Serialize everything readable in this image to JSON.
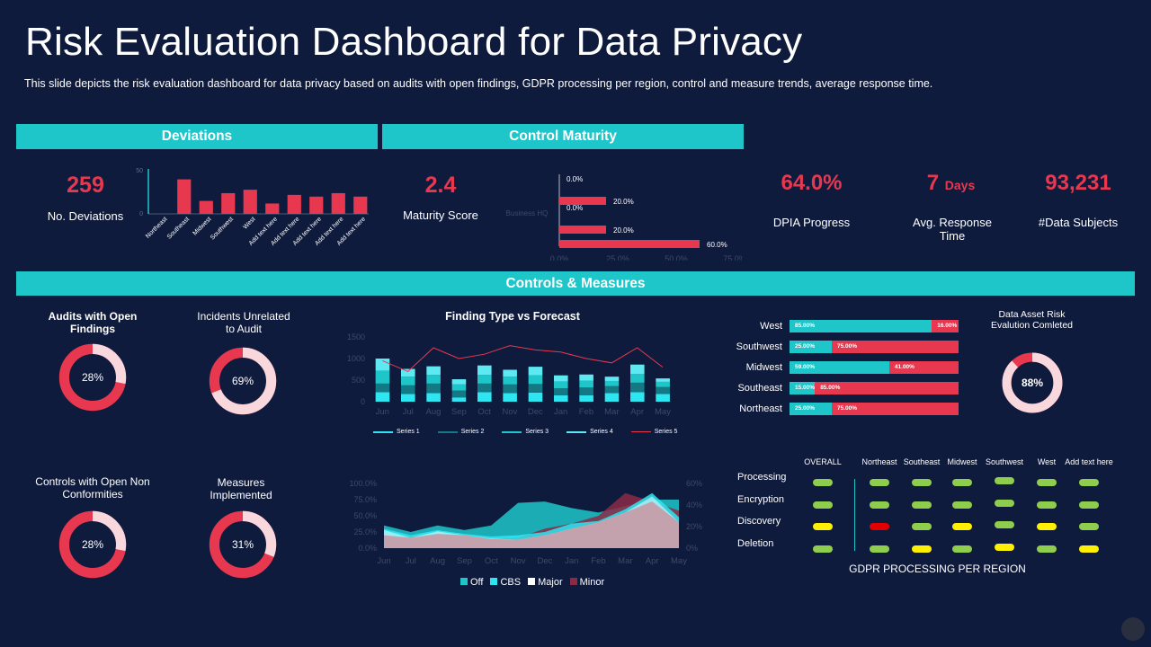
{
  "title": "Risk Evaluation Dashboard for Data Privacy",
  "subtitle": "This slide depicts the risk evaluation  dashboard for data privacy based on audits with open findings, GDPR processing per region, control and measure trends, average  response time.",
  "colors": {
    "background": "#0f1b3d",
    "accent": "#1ec6c9",
    "red": "#e8384f",
    "pink": "#f8d7dd",
    "green": "#8fce4c",
    "yellow": "#ffef00"
  },
  "sections": {
    "deviations": "Deviations",
    "control_maturity": "Control Maturity",
    "controls_measures": "Controls & Measures"
  },
  "kpis": {
    "deviations_value": "259",
    "deviations_label": "No. Deviations",
    "maturity_value": "2.4",
    "maturity_label": "Maturity Score",
    "dpia_value": "64.0%",
    "dpia_label": "DPIA Progress",
    "response_value": "7",
    "response_unit": "Days",
    "response_label": "Avg. Response Time",
    "subjects_value": "93,231",
    "subjects_label": "#Data Subjects"
  },
  "deviation_chart": {
    "type": "bar",
    "categories": [
      "Northeast",
      "Southeast",
      "Midwest",
      "Southwest",
      "West",
      "Add text here",
      "Add text here",
      "Add text here",
      "Add text here",
      "Add text here"
    ],
    "values": [
      0,
      40,
      15,
      24,
      28,
      12,
      22,
      20,
      24,
      20
    ],
    "ylim": [
      0,
      50
    ],
    "yticks": [
      "50",
      "0"
    ]
  },
  "maturity_chart": {
    "type": "bar",
    "ylabel": "Business HQ",
    "values": [
      0,
      20,
      0,
      20,
      60
    ],
    "labels": [
      "0.0%",
      "20.0%",
      "0.0%",
      "20.0%",
      "60.0%"
    ],
    "xticks": [
      "0.0%",
      "25.0%",
      "50.0%",
      "75.0%"
    ],
    "xlim": [
      0,
      75
    ]
  },
  "donuts": [
    {
      "title": "Audits with Open Findings",
      "value": 28,
      "label": "28%",
      "bold": true
    },
    {
      "title": "Incidents Unrelated to Audit",
      "value": 69,
      "label": "69%",
      "bold": false
    },
    {
      "title": "Controls with Open Non Conformities",
      "value": 28,
      "label": "28%",
      "bold": false
    },
    {
      "title": "Measures Implemented",
      "value": 31,
      "label": "31%",
      "bold": false
    },
    {
      "title": "Data Asset Risk Evalution Comleted",
      "value": 88,
      "label": "88%",
      "bold": false
    }
  ],
  "finding_chart": {
    "type": "bar",
    "title": "Finding Type vs Forecast",
    "categories": [
      "Jun",
      "Jul",
      "Aug",
      "Sep",
      "Oct",
      "Nov",
      "Dec",
      "Jan",
      "Feb",
      "Mar",
      "Apr",
      "May"
    ],
    "yticks": [
      "1500",
      "1000",
      "500",
      "0"
    ],
    "ylim": [
      0,
      1500
    ],
    "series": [
      {
        "name": "Series 1",
        "color": "#2ee6f2",
        "values": [
          220,
          180,
          200,
          100,
          220,
          200,
          210,
          150,
          150,
          200,
          220,
          180
        ]
      },
      {
        "name": "Series 2",
        "color": "#137a85",
        "values": [
          200,
          200,
          220,
          160,
          200,
          200,
          200,
          160,
          180,
          160,
          220,
          160
        ]
      },
      {
        "name": "Series 3",
        "color": "#1ec6c9",
        "values": [
          300,
          200,
          200,
          140,
          200,
          180,
          200,
          160,
          160,
          120,
          200,
          120
        ]
      },
      {
        "name": "Series 4",
        "color": "#5ee9f2",
        "values": [
          280,
          180,
          200,
          120,
          220,
          160,
          200,
          140,
          140,
          100,
          220,
          80
        ]
      }
    ],
    "line": {
      "name": "Series 5",
      "color": "#e8384f",
      "values": [
        950,
        700,
        1250,
        1000,
        1100,
        1300,
        1200,
        1150,
        1000,
        900,
        1250,
        800
      ]
    }
  },
  "area_chart": {
    "type": "area",
    "categories": [
      "Jun",
      "Jul",
      "Aug",
      "Sep",
      "Oct",
      "Nov",
      "Dec",
      "Jan",
      "Feb",
      "Mar",
      "Apr",
      "May"
    ],
    "yticks_left": [
      "100.0%",
      "75.0%",
      "50.0%",
      "25.0%",
      "0.0%"
    ],
    "yticks_right": [
      "60%",
      "40%",
      "20%",
      "0%"
    ],
    "series": [
      {
        "name": "Off",
        "color": "#1ec6c9",
        "values": [
          35,
          25,
          35,
          28,
          35,
          70,
          72,
          62,
          55,
          65,
          75,
          75
        ]
      },
      {
        "name": "CBS",
        "color": "#2ee6f2",
        "values": [
          30,
          20,
          28,
          22,
          18,
          20,
          25,
          38,
          42,
          60,
          85,
          48
        ]
      },
      {
        "name": "Major",
        "color": "#ffffff",
        "values": [
          28,
          16,
          26,
          20,
          15,
          13,
          20,
          30,
          40,
          55,
          80,
          40
        ]
      },
      {
        "name": "Minor",
        "color": "#8b2a45",
        "values": [
          20,
          18,
          22,
          20,
          14,
          16,
          30,
          38,
          50,
          85,
          72,
          58
        ]
      }
    ]
  },
  "region_bars": [
    {
      "region": "West",
      "a": 85,
      "b": 16,
      "a_label": "85.00%",
      "b_label": "16.00%"
    },
    {
      "region": "Southwest",
      "a": 25,
      "b": 75,
      "a_label": "25.00%",
      "b_label": "75.00%"
    },
    {
      "region": "Midwest",
      "a": 59,
      "b": 41,
      "a_label": "59.00%",
      "b_label": "41.00%"
    },
    {
      "region": "Southeast",
      "a": 15,
      "b": 85,
      "a_label": "15.00%",
      "b_label": "85.00%"
    },
    {
      "region": "Northeast",
      "a": 25,
      "b": 75,
      "a_label": "25.00%",
      "b_label": "75.00%"
    }
  ],
  "gdpr": {
    "title": "GDPR PROCESSING PER REGION",
    "columns": [
      "OVERALL",
      "Northeast",
      "Southeast",
      "Midwest",
      "Southwest",
      "West",
      "Add text here"
    ],
    "rows": [
      {
        "label": "Processing",
        "status": [
          "green",
          "green",
          "green",
          "green",
          "green",
          "green",
          "green"
        ]
      },
      {
        "label": "Encryption",
        "status": [
          "green",
          "green",
          "green",
          "green",
          "green",
          "green",
          "green"
        ]
      },
      {
        "label": "Discovery",
        "status": [
          "yellow",
          "red",
          "green",
          "yellow",
          "green",
          "yellow",
          "green"
        ]
      },
      {
        "label": "Deletion",
        "status": [
          "green",
          "green",
          "yellow",
          "green",
          "yellow",
          "green",
          "yellow"
        ]
      }
    ]
  }
}
